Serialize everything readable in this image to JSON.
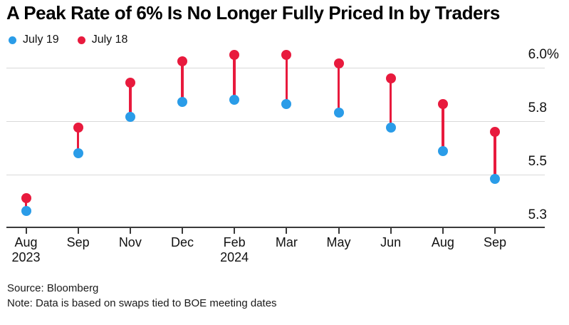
{
  "footer": {
    "source": "Source: Bloomberg",
    "note": "Note: Data is based on swaps tied to BOE meeting dates"
  },
  "chart_data": {
    "type": "scatter",
    "subtype": "dumbbell",
    "title": "A Peak Rate of 6% Is No Longer Fully Priced In by Traders",
    "unit": "%",
    "categories": [
      "Aug",
      "Sep",
      "Nov",
      "Dec",
      "Feb",
      "Mar",
      "May",
      "Jun",
      "Aug",
      "Sep"
    ],
    "category_sublabels": [
      "2023",
      "",
      "",
      "",
      "2024",
      "",
      "",
      "",
      "",
      ""
    ],
    "series": [
      {
        "name": "July 19",
        "color": "#2a9ce8",
        "values": [
          5.33,
          5.6,
          5.77,
          5.84,
          5.85,
          5.83,
          5.79,
          5.72,
          5.61,
          5.48
        ]
      },
      {
        "name": "July 18",
        "color": "#e81a3d",
        "values": [
          5.39,
          5.72,
          5.93,
          6.03,
          6.06,
          6.06,
          6.02,
          5.95,
          5.83,
          5.7
        ]
      }
    ],
    "y_ticks": [
      {
        "value": 6.0,
        "label": "6.0",
        "suffix": "%"
      },
      {
        "value": 5.75,
        "label": "5.8",
        "suffix": ""
      },
      {
        "value": 5.5,
        "label": "5.5",
        "suffix": ""
      },
      {
        "value": 5.25,
        "label": "5.3",
        "suffix": ""
      }
    ],
    "ylim": [
      5.25,
      6.08
    ],
    "grid": true,
    "legend_position": "top-left",
    "connector_color": "#e81a3d",
    "gridline_color": "#d9d9d9",
    "axis_color": "#3a3a3a"
  }
}
